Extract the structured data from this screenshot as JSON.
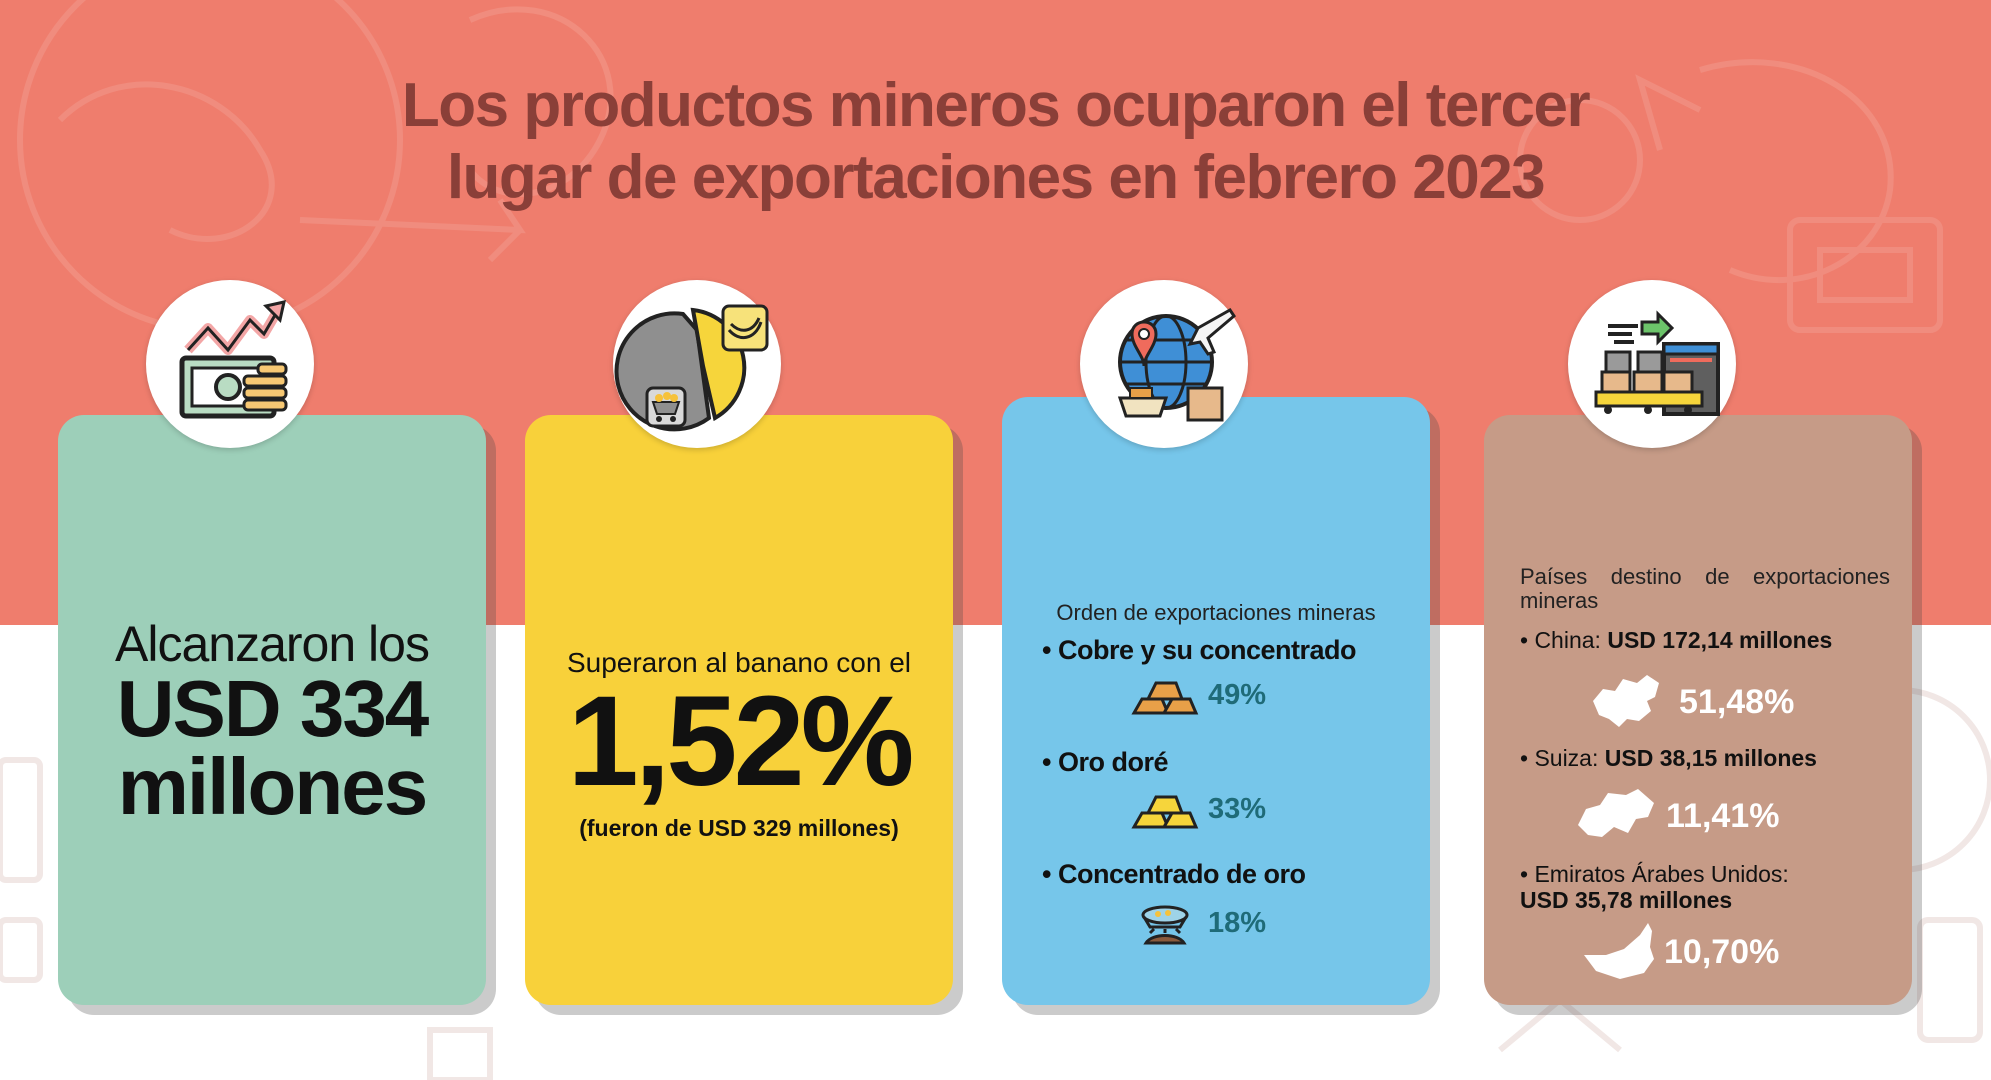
{
  "title": {
    "line1": "Los productos mineros ocuparon el tercer",
    "line2": "lugar de exportaciones en febrero 2023"
  },
  "card1": {
    "line1": "Alcanzaron los",
    "amount": "USD 334",
    "unit": "millones",
    "icon": "money-growth-icon"
  },
  "card2": {
    "pre": "Superaron al banano con el",
    "percent": "1,52%",
    "post": "(fueron de USD 329 millones)",
    "icon": "pie-banana-mining-icon"
  },
  "card3": {
    "heading": "Orden de exportaciones mineras",
    "items": [
      {
        "label": "• Cobre y su concentrado",
        "percent": "49%",
        "icon": "copper-bars-icon"
      },
      {
        "label": "• Oro doré",
        "percent": "33%",
        "icon": "gold-bars-icon"
      },
      {
        "label": "• Concentrado de oro",
        "percent": "18%",
        "icon": "gold-pan-icon"
      }
    ]
  },
  "card4": {
    "heading": "Países destino de exportaciones mineras",
    "countries": [
      {
        "name": "• China:",
        "amount": "USD 172,14 millones",
        "percent": "51,48%",
        "icon": "china-map-icon"
      },
      {
        "name": "• Suiza:",
        "amount": "USD 38,15 millones",
        "percent": "11,41%",
        "icon": "switzerland-map-icon"
      },
      {
        "name": "• Emiratos Árabes Unidos:",
        "amount": "USD 35,78 millones",
        "percent": "10,70%",
        "icon": "uae-map-icon"
      }
    ]
  },
  "colors": {
    "top_band": "#ef7d6d",
    "title": "#8a3f38",
    "card_green": "#9dcfb9",
    "card_yellow": "#f8d13a",
    "card_blue": "#76c6ea",
    "card_brown": "#c69b87",
    "percent_teal": "#1f6b78"
  }
}
